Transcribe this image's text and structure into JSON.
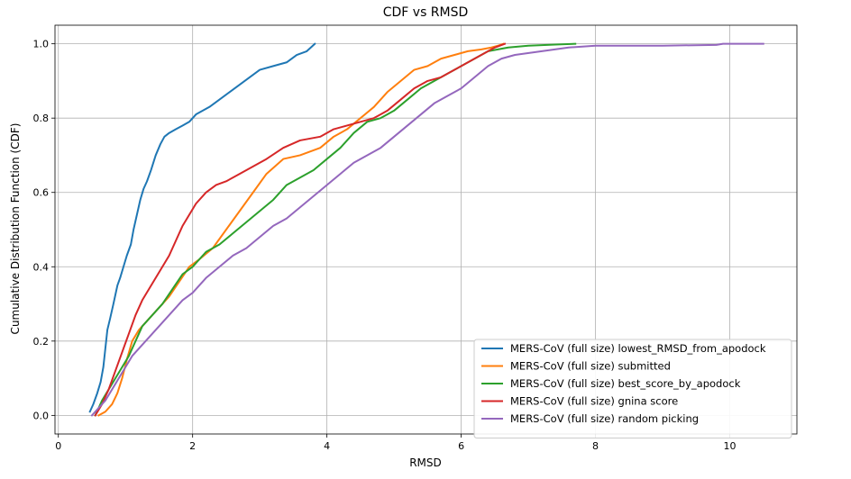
{
  "chart_data": {
    "type": "line",
    "title": "CDF vs RMSD",
    "xlabel": "RMSD",
    "ylabel": "Cumulative Distribution Function (CDF)",
    "xlim": [
      -0.05,
      11.0
    ],
    "ylim": [
      -0.05,
      1.05
    ],
    "xticks": [
      0,
      2,
      4,
      6,
      8,
      10
    ],
    "xtick_labels": [
      "0",
      "2",
      "4",
      "6",
      "8",
      "10"
    ],
    "yticks": [
      0.0,
      0.2,
      0.4,
      0.6,
      0.8,
      1.0
    ],
    "ytick_labels": [
      "0.0",
      "0.2",
      "0.4",
      "0.6",
      "0.8",
      "1.0"
    ],
    "grid": true,
    "legend_position": "lower-right",
    "series": [
      {
        "name": "MERS-CoV (full size) lowest_RMSD_from_apodock",
        "color": "#1f77b4",
        "x": [
          0.47,
          0.52,
          0.58,
          0.63,
          0.67,
          0.7,
          0.73,
          0.77,
          0.82,
          0.88,
          0.92,
          0.97,
          1.02,
          1.08,
          1.12,
          1.17,
          1.22,
          1.27,
          1.32,
          1.38,
          1.45,
          1.52,
          1.58,
          1.65,
          1.75,
          1.85,
          1.95,
          2.05,
          2.15,
          2.25,
          2.4,
          2.55,
          2.7,
          2.85,
          3.0,
          3.2,
          3.4,
          3.55,
          3.7,
          3.82
        ],
        "y": [
          0.01,
          0.03,
          0.06,
          0.09,
          0.13,
          0.18,
          0.23,
          0.26,
          0.3,
          0.35,
          0.37,
          0.4,
          0.43,
          0.46,
          0.5,
          0.54,
          0.58,
          0.61,
          0.63,
          0.66,
          0.7,
          0.73,
          0.75,
          0.76,
          0.77,
          0.78,
          0.79,
          0.81,
          0.82,
          0.83,
          0.85,
          0.87,
          0.89,
          0.91,
          0.93,
          0.94,
          0.95,
          0.97,
          0.98,
          1.0
        ]
      },
      {
        "name": "MERS-CoV (full size) submitted",
        "color": "#ff7f0e",
        "x": [
          0.6,
          0.7,
          0.8,
          0.88,
          0.95,
          1.02,
          1.1,
          1.2,
          1.35,
          1.5,
          1.65,
          1.8,
          1.95,
          2.1,
          2.3,
          2.5,
          2.7,
          2.9,
          3.1,
          3.35,
          3.6,
          3.9,
          4.1,
          4.3,
          4.5,
          4.7,
          4.9,
          5.1,
          5.3,
          5.5,
          5.7,
          5.9,
          6.1,
          6.3,
          6.45,
          6.55,
          6.63
        ],
        "y": [
          0.0,
          0.01,
          0.03,
          0.06,
          0.1,
          0.15,
          0.2,
          0.23,
          0.26,
          0.29,
          0.32,
          0.36,
          0.4,
          0.42,
          0.45,
          0.5,
          0.55,
          0.6,
          0.65,
          0.69,
          0.7,
          0.72,
          0.75,
          0.77,
          0.8,
          0.83,
          0.87,
          0.9,
          0.93,
          0.94,
          0.96,
          0.97,
          0.98,
          0.985,
          0.99,
          0.995,
          1.0
        ]
      },
      {
        "name": "MERS-CoV (full size) best_score_by_apodock",
        "color": "#2ca02c",
        "x": [
          0.55,
          0.65,
          0.75,
          0.85,
          0.95,
          1.05,
          1.15,
          1.25,
          1.4,
          1.55,
          1.7,
          1.85,
          2.0,
          2.2,
          2.4,
          2.6,
          2.8,
          3.0,
          3.2,
          3.4,
          3.6,
          3.8,
          4.0,
          4.2,
          4.4,
          4.6,
          4.8,
          5.0,
          5.2,
          5.4,
          5.6,
          5.8,
          6.0,
          6.2,
          6.4,
          6.7,
          7.0,
          7.4,
          7.7
        ],
        "y": [
          0.0,
          0.04,
          0.07,
          0.1,
          0.13,
          0.16,
          0.2,
          0.24,
          0.27,
          0.3,
          0.34,
          0.38,
          0.4,
          0.44,
          0.46,
          0.49,
          0.52,
          0.55,
          0.58,
          0.62,
          0.64,
          0.66,
          0.69,
          0.72,
          0.76,
          0.79,
          0.8,
          0.82,
          0.85,
          0.88,
          0.9,
          0.92,
          0.94,
          0.96,
          0.98,
          0.99,
          0.995,
          0.998,
          1.0
        ]
      },
      {
        "name": "MERS-CoV (full size) gnina score",
        "color": "#d62728",
        "x": [
          0.55,
          0.65,
          0.75,
          0.85,
          0.95,
          1.05,
          1.15,
          1.25,
          1.35,
          1.45,
          1.55,
          1.65,
          1.75,
          1.85,
          1.95,
          2.05,
          2.2,
          2.35,
          2.5,
          2.7,
          2.9,
          3.1,
          3.35,
          3.6,
          3.9,
          4.1,
          4.3,
          4.5,
          4.7,
          4.9,
          5.1,
          5.3,
          5.5,
          5.7,
          5.9,
          6.1,
          6.3,
          6.5,
          6.65
        ],
        "y": [
          0.0,
          0.03,
          0.07,
          0.12,
          0.17,
          0.22,
          0.27,
          0.31,
          0.34,
          0.37,
          0.4,
          0.43,
          0.47,
          0.51,
          0.54,
          0.57,
          0.6,
          0.62,
          0.63,
          0.65,
          0.67,
          0.69,
          0.72,
          0.74,
          0.75,
          0.77,
          0.78,
          0.79,
          0.8,
          0.82,
          0.85,
          0.88,
          0.9,
          0.91,
          0.93,
          0.95,
          0.97,
          0.99,
          1.0
        ]
      },
      {
        "name": "MERS-CoV (full size) random picking",
        "color": "#9467bd",
        "x": [
          0.5,
          0.6,
          0.7,
          0.8,
          0.9,
          1.0,
          1.1,
          1.25,
          1.4,
          1.55,
          1.7,
          1.85,
          2.0,
          2.2,
          2.4,
          2.6,
          2.8,
          3.0,
          3.2,
          3.4,
          3.6,
          3.8,
          4.0,
          4.2,
          4.4,
          4.6,
          4.8,
          5.0,
          5.2,
          5.4,
          5.6,
          5.8,
          6.0,
          6.2,
          6.4,
          6.6,
          6.8,
          7.2,
          7.6,
          8.0,
          9.0,
          9.8,
          9.9,
          10.5
        ],
        "y": [
          0.0,
          0.02,
          0.04,
          0.07,
          0.1,
          0.13,
          0.16,
          0.19,
          0.22,
          0.25,
          0.28,
          0.31,
          0.33,
          0.37,
          0.4,
          0.43,
          0.45,
          0.48,
          0.51,
          0.53,
          0.56,
          0.59,
          0.62,
          0.65,
          0.68,
          0.7,
          0.72,
          0.75,
          0.78,
          0.81,
          0.84,
          0.86,
          0.88,
          0.91,
          0.94,
          0.96,
          0.97,
          0.98,
          0.99,
          0.995,
          0.995,
          0.997,
          1.0,
          1.0
        ]
      }
    ]
  }
}
